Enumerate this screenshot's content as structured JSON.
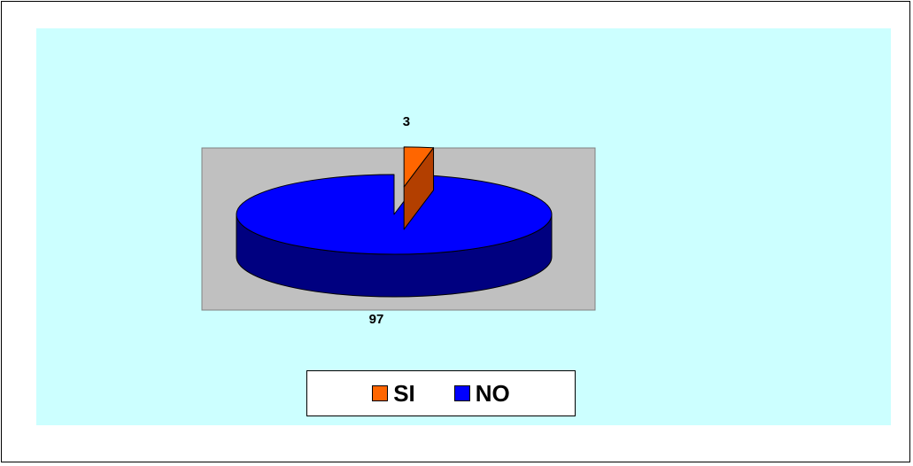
{
  "chart_data": {
    "type": "pie",
    "style": "3d-exploded",
    "categories": [
      "SI",
      "NO"
    ],
    "values": [
      3,
      97
    ],
    "data_labels": [
      "3",
      "97"
    ],
    "colors": {
      "SI": {
        "top": "#FF6600",
        "side": "#B33F00"
      },
      "NO": {
        "top": "#0000FF",
        "side": "#000080"
      },
      "chart_area": "#CCFFFF",
      "plot_area": "#C0C0C0"
    },
    "legend": {
      "position": "bottom",
      "items": [
        {
          "label": "SI",
          "color": "#FF6600"
        },
        {
          "label": "NO",
          "color": "#0000FF"
        }
      ]
    },
    "title": "",
    "grid": false
  }
}
